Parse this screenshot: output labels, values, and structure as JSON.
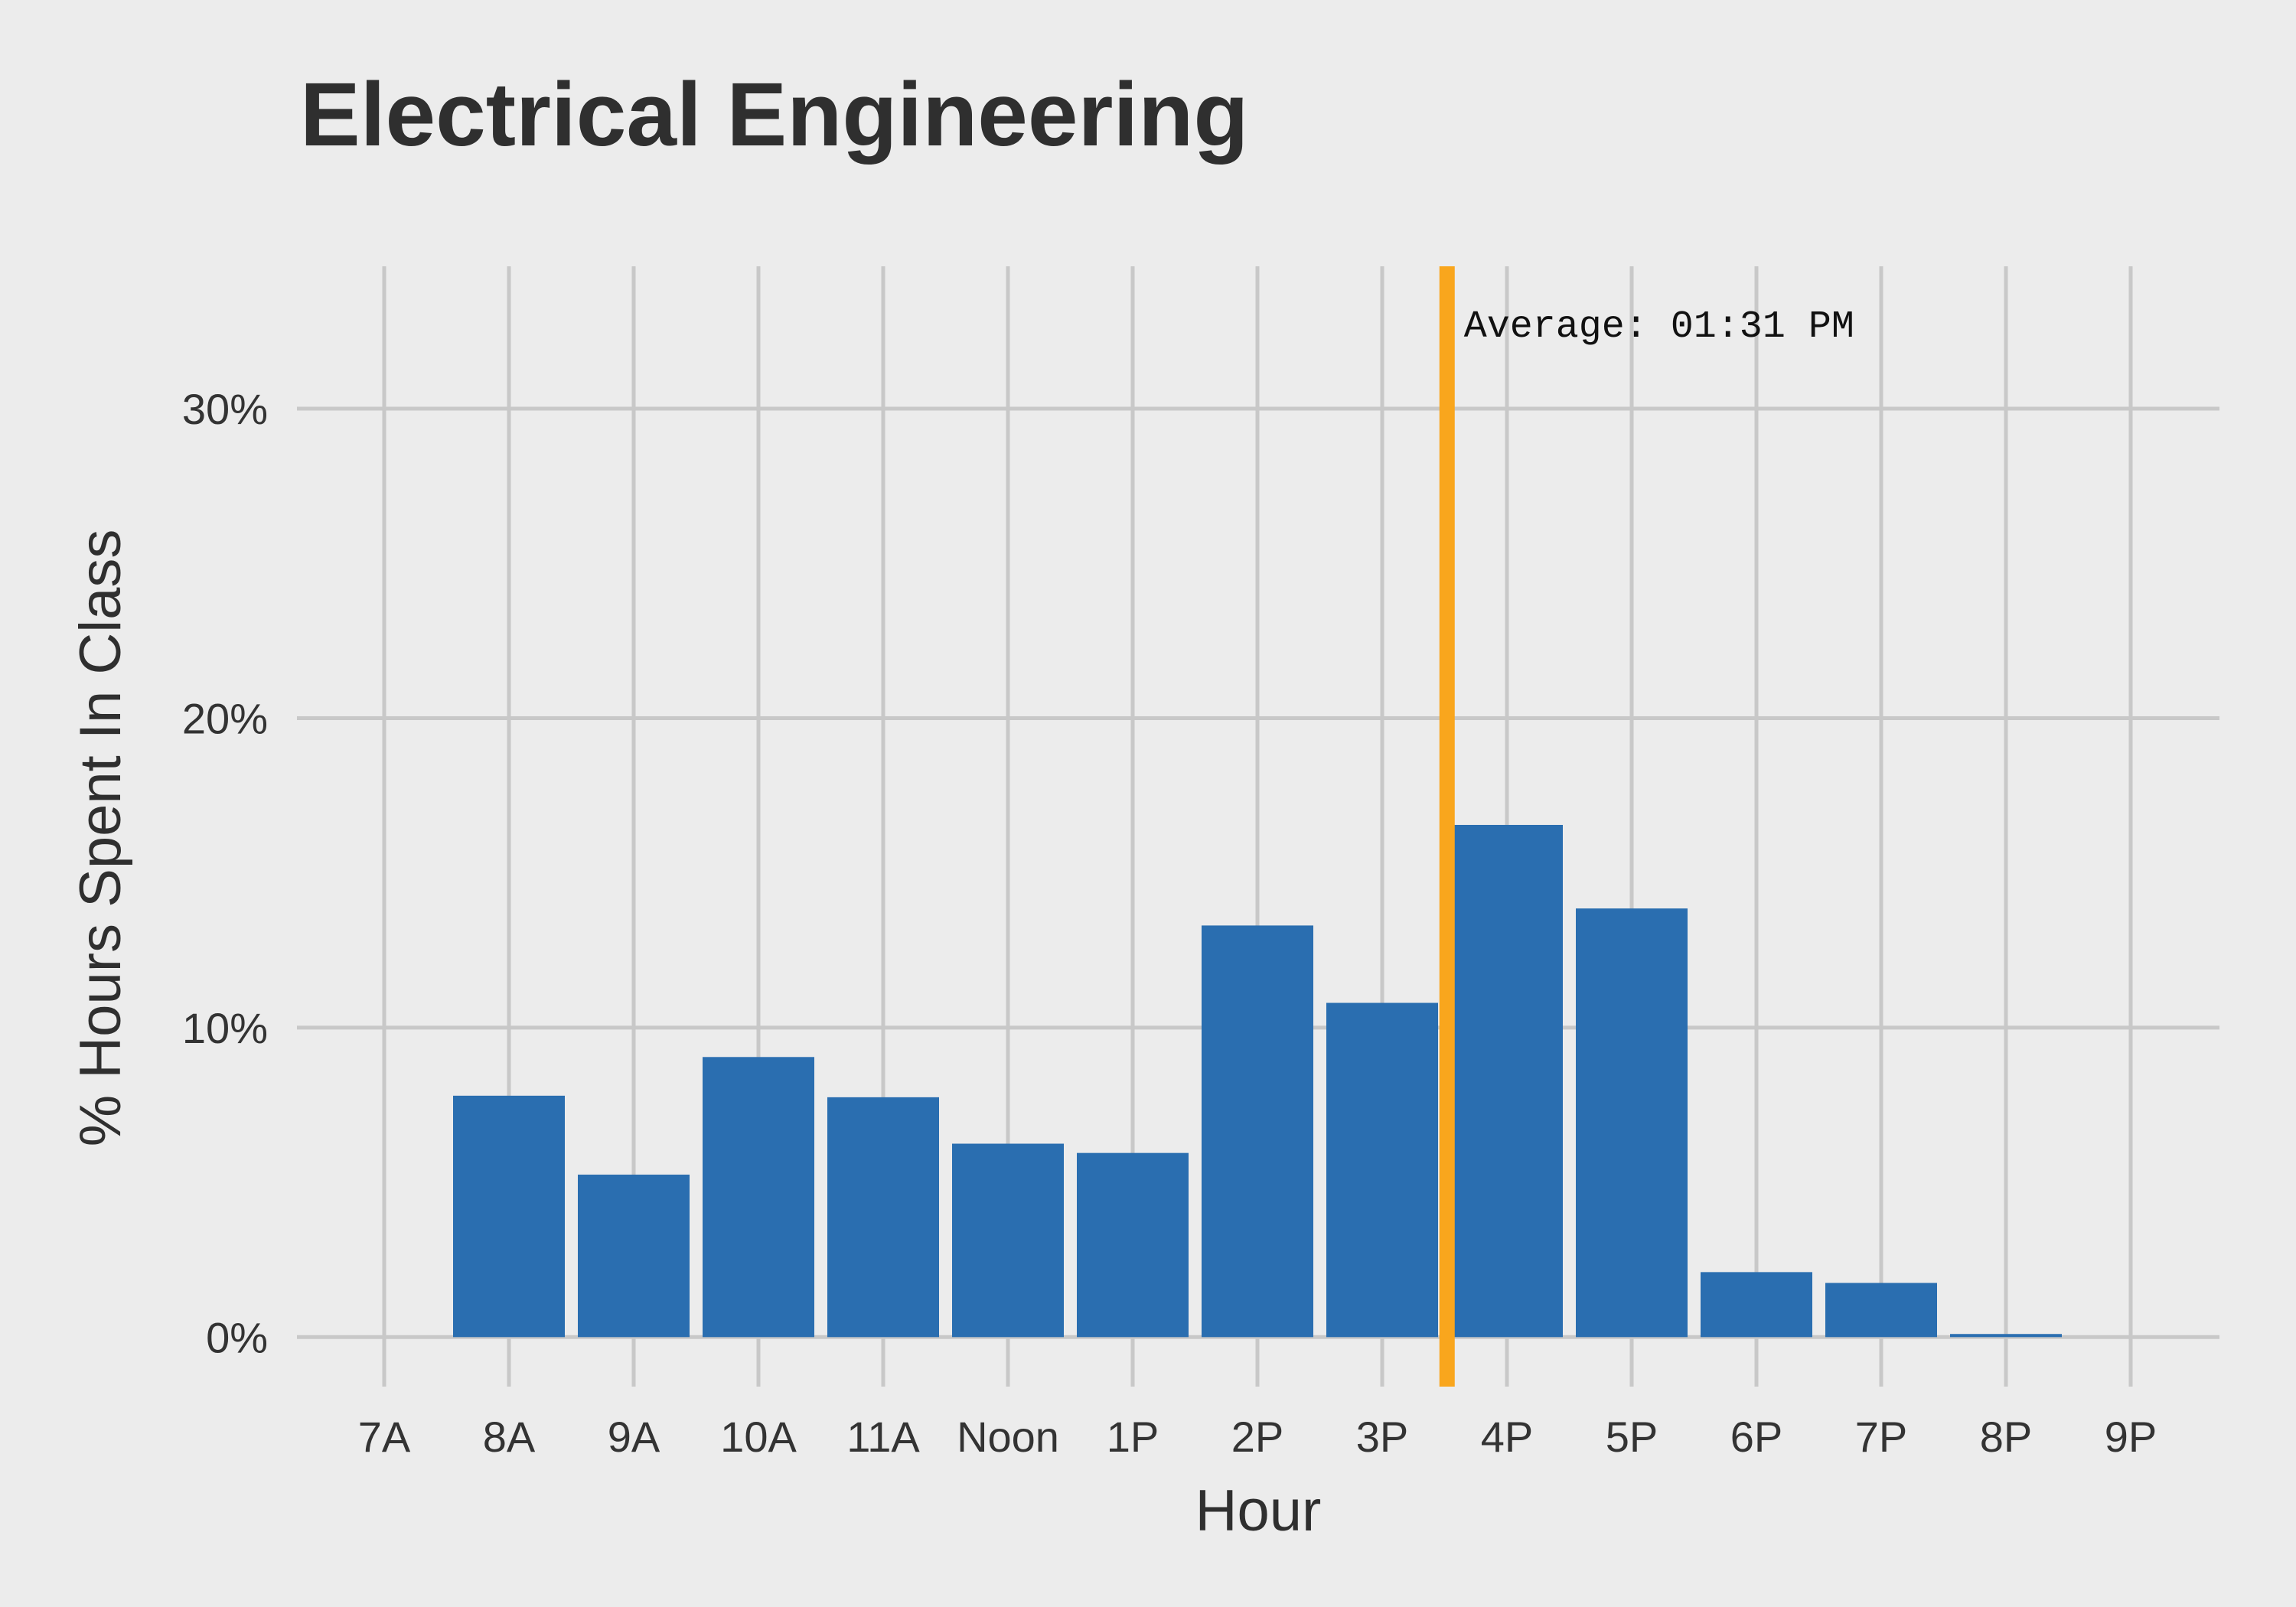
{
  "chart_data": {
    "type": "bar",
    "title": "Electrical Engineering",
    "xlabel": "Hour",
    "ylabel": "% Hours Spent In Class",
    "categories": [
      "7A",
      "8A",
      "9A",
      "10A",
      "11A",
      "Noon",
      "1P",
      "2P",
      "3P",
      "4P",
      "5P",
      "6P",
      "7P",
      "8P",
      "9P"
    ],
    "values": [
      0,
      7.8,
      5.25,
      9.05,
      7.75,
      6.25,
      5.95,
      13.3,
      10.8,
      16.55,
      13.85,
      2.1,
      1.75,
      0.1,
      0
    ],
    "ylim": [
      -1.6,
      34.6
    ],
    "y_ticks": [
      0,
      10,
      20,
      30
    ],
    "y_tick_labels": [
      "0%",
      "10%",
      "20%",
      "30%"
    ],
    "grid": true,
    "bar_color": "#2a6eb0",
    "reference_line": {
      "position": 8.52,
      "label": "Average: 01:31 PM",
      "color": "#f9a61d"
    }
  },
  "colors": {
    "background": "#ececec",
    "grid": "#c8c8c8",
    "text": "#2f2f2f"
  }
}
